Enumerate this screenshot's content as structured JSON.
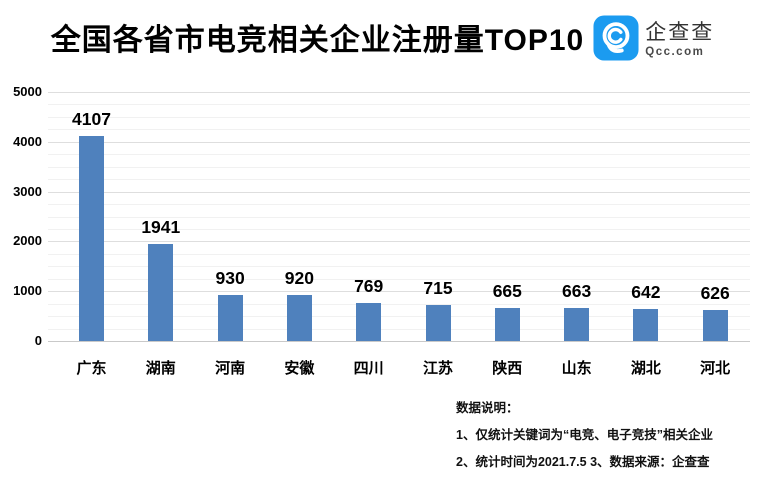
{
  "header": {
    "title": "全国各省市电竞相关企业注册量TOP10",
    "logo": {
      "brand": "企查查",
      "domain": "Qcc.com",
      "accent_color": "#1B9BF0"
    }
  },
  "chart_data": {
    "type": "bar",
    "title": "全国各省市电竞相关企业注册量TOP10",
    "categories": [
      "广东",
      "湖南",
      "河南",
      "安徽",
      "四川",
      "江苏",
      "陕西",
      "山东",
      "湖北",
      "河北"
    ],
    "values": [
      4107,
      1941,
      930,
      920,
      769,
      715,
      665,
      663,
      642,
      626
    ],
    "xlabel": "",
    "ylabel": "",
    "ylim": [
      0,
      5000
    ],
    "yticks": [
      0,
      1000,
      2000,
      3000,
      4000,
      5000
    ],
    "minor_grid_step": 250,
    "grid": true,
    "legend": false,
    "bar_color": "#4F81BD",
    "value_labels": true
  },
  "notes": {
    "heading": "数据说明：",
    "lines": [
      "1、仅统计关键词为“电竞、电子竞技”相关企业",
      "2、统计时间为2021.7.5 3、数据来源：企查查"
    ]
  }
}
